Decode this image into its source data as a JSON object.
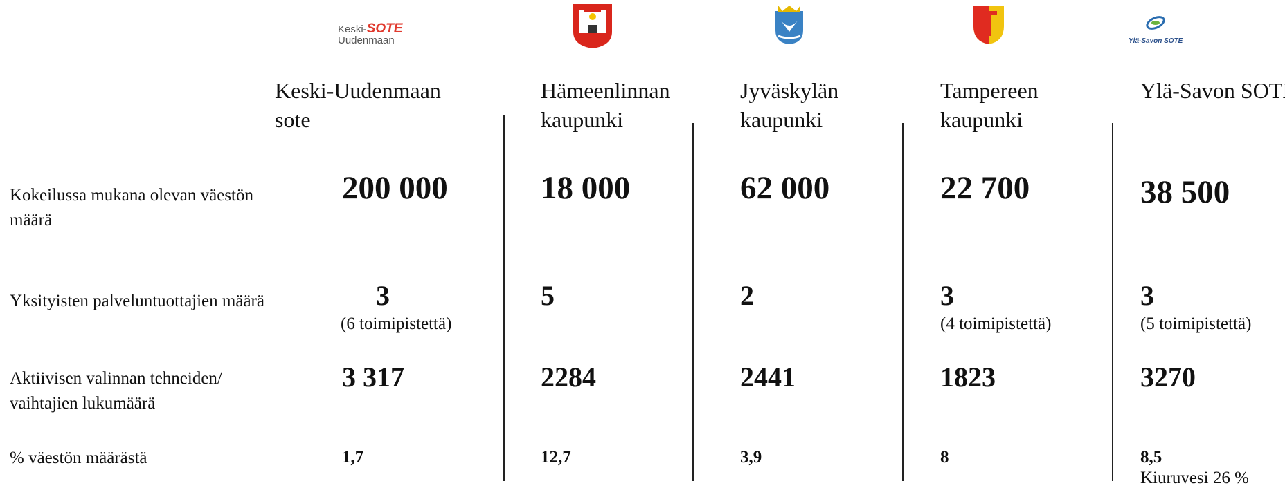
{
  "logos": [
    {
      "line1": "Keski-",
      "line2": "SOTE",
      "line3": "Uudenmaan"
    },
    {},
    {},
    {},
    {
      "line1": "Ylä-Savon SOTE"
    }
  ],
  "table": {
    "row_labels": [
      "Kokeilussa mukana olevan väestön määrä",
      "Yksityisten palveluntuottajien määrä",
      "Aktiivisen valinnan tehneiden/ vaihtajien lukumäärä",
      "% väestön määrästä"
    ],
    "columns": [
      {
        "name": "Keski-Uudenmaan sote",
        "population": "200 000",
        "providers": "3",
        "providers_note": "(6 toimipistettä)",
        "choices": "3 317",
        "percent": "1,7"
      },
      {
        "name": "Hämeenlinnan kaupunki",
        "population": "18 000",
        "providers": "5",
        "choices": "2284",
        "percent": "12,7"
      },
      {
        "name": "Jyväskylän kaupunki",
        "population": "62 000",
        "providers": "2",
        "choices": "2441",
        "percent": "3,9"
      },
      {
        "name": "Tampereen kaupunki",
        "population": "22 700",
        "providers": "3",
        "providers_note": "(4 toimipistettä)",
        "choices": "1823",
        "percent": "8"
      },
      {
        "name": "Ylä-Savon SOTE",
        "population": "38 500",
        "providers": "3",
        "providers_note": "(5 toimipistettä)",
        "choices": "3270",
        "percent": "8,5",
        "percent_note": "Kiuruvesi 26 %"
      }
    ]
  }
}
